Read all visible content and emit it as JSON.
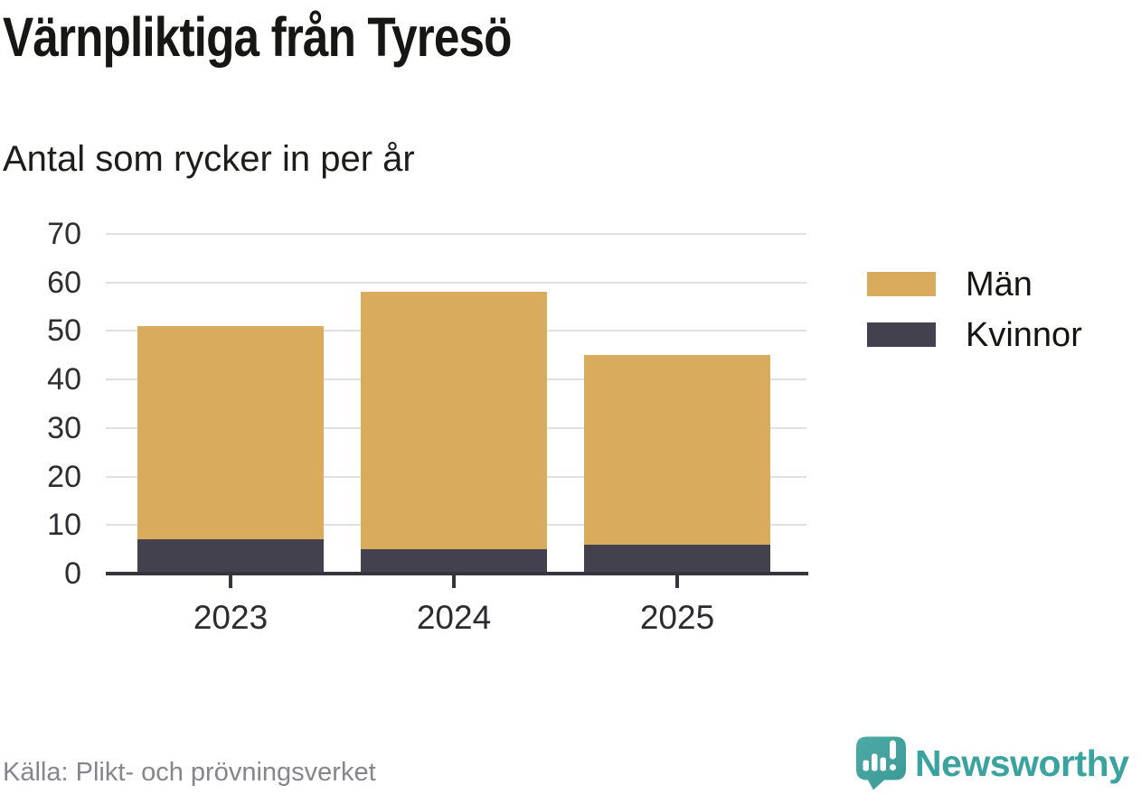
{
  "header": {
    "title": "Värnpliktiga från Tyresö",
    "subtitle": "Antal som rycker in per år"
  },
  "chart_data": {
    "type": "bar",
    "stacked": true,
    "title": "Värnpliktiga från Tyresö",
    "subtitle": "Antal som rycker in per år",
    "categories": [
      "2023",
      "2024",
      "2025"
    ],
    "series": [
      {
        "name": "Män",
        "color": "#d9ab5c",
        "values": [
          44,
          53,
          39
        ]
      },
      {
        "name": "Kvinnor",
        "color": "#43414e",
        "values": [
          7,
          5,
          6
        ]
      }
    ],
    "stack_order_bottom_to_top": [
      "Kvinnor",
      "Män"
    ],
    "totals": [
      51,
      58,
      45
    ],
    "xlabel": "",
    "ylabel": "",
    "ylim": [
      0,
      70
    ],
    "yticks": [
      0,
      10,
      20,
      30,
      40,
      50,
      60,
      70
    ],
    "grid": true,
    "legend_position": "right"
  },
  "footer": {
    "source": "Källa: Plikt- och prövningsverket",
    "brand": "Newsworthy"
  },
  "colors": {
    "men_series": "#d9ab5c",
    "women_series": "#43414e",
    "brand_teal": "#3aa39f",
    "gridline": "#e0e0e3",
    "axis": "#36343e",
    "source_text": "#85858d"
  }
}
